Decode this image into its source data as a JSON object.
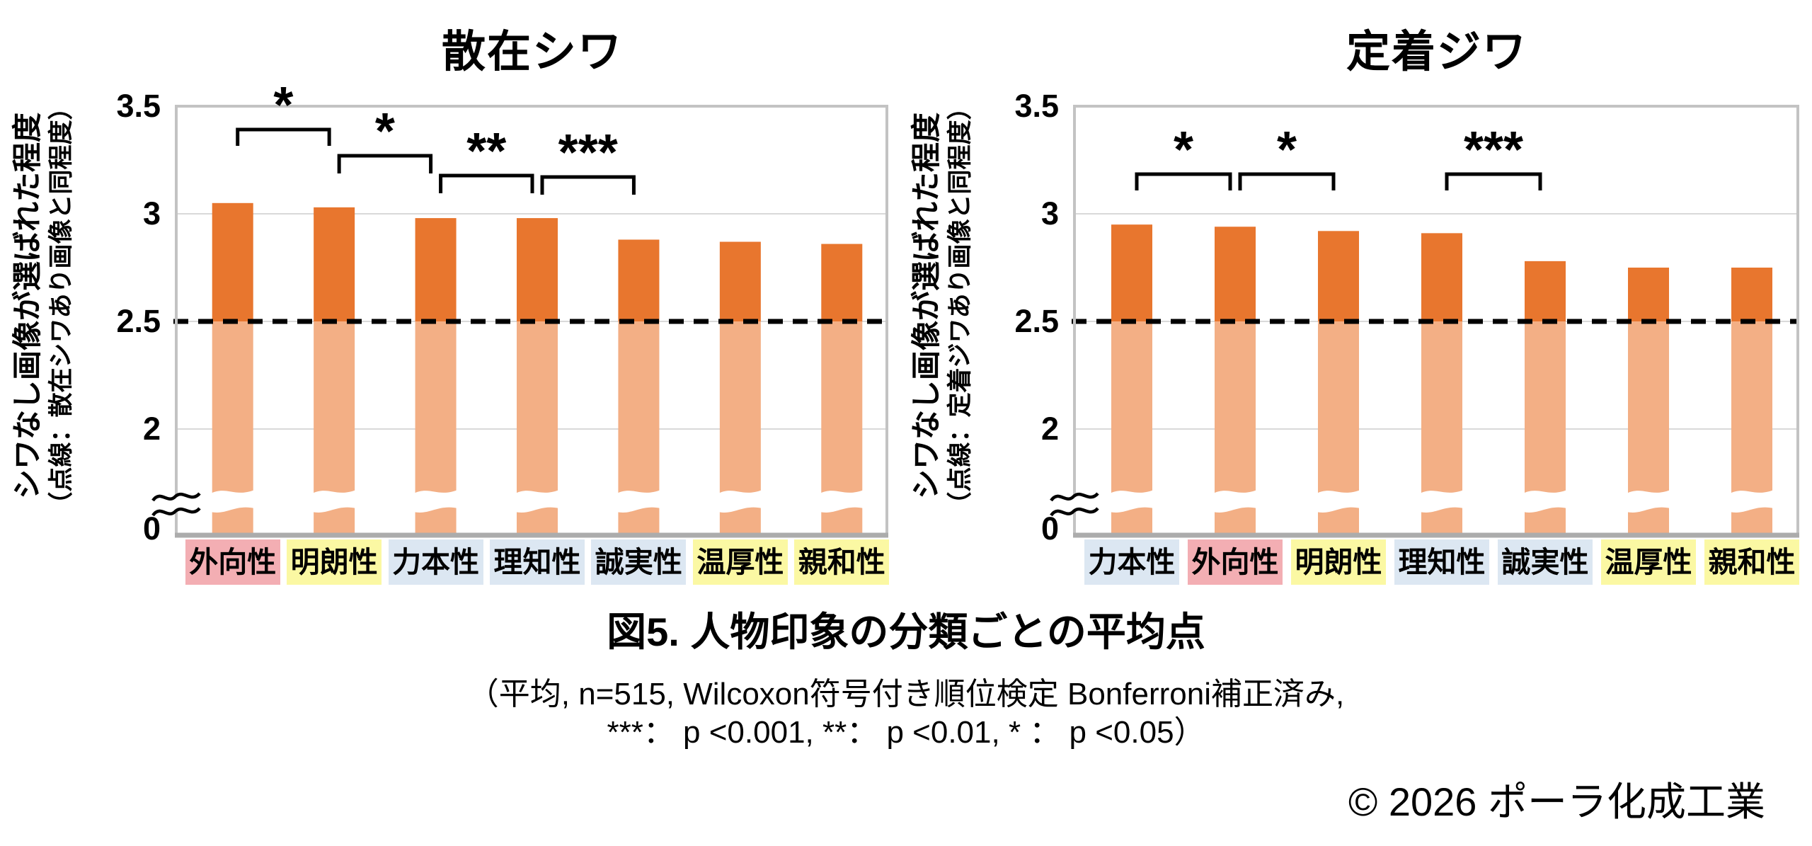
{
  "figure": {
    "caption_title": "図5. 人物印象の分類ごとの平均点",
    "caption_note_line1": "（平均, n=515, Wilcoxon符号付き順位検定 Bonferroni補正済み,",
    "caption_note_line2": "***： p <0.001, **： p <0.01, * ： p <0.05）",
    "copyright": "© 2026 ポーラ化成工業"
  },
  "colors": {
    "bar_dark": "#E8762E",
    "bar_light": "#F3AF85",
    "label_pink": "#F3AEB3",
    "label_yellow": "#FBF8A3",
    "label_blue": "#DCE7F2",
    "gridline": "#D9D9D9",
    "plot_border": "#C3C3C3",
    "axis_bottom": "#ACACAC",
    "baseline_dash": "#000000"
  },
  "chart_data": [
    {
      "type": "bar",
      "title": "散在シワ",
      "ylabel": "シワなし画像が選ばれた程度",
      "ylabel_sub": "（点線：散在シワあり画像と同程度）",
      "xlabel": "",
      "categories": [
        "外向性",
        "明朗性",
        "力本性",
        "理知性",
        "誠実性",
        "温厚性",
        "親和性"
      ],
      "category_colors": [
        "pink",
        "yellow",
        "blue",
        "blue",
        "blue",
        "yellow",
        "yellow"
      ],
      "values": [
        3.05,
        3.03,
        2.98,
        2.98,
        2.88,
        2.87,
        2.86
      ],
      "yticks": [
        3.5,
        3,
        2.5,
        2,
        0
      ],
      "ylim": [
        0,
        3.5
      ],
      "axis_break": "between 0 and 2",
      "grid": true,
      "legend": "none",
      "baseline": 2.5,
      "baseline_meaning": "点線：散在シワあり画像と同程度",
      "significance": [
        {
          "bars": [
            1,
            2
          ],
          "label": "*"
        },
        {
          "bars": [
            2,
            3
          ],
          "label": "*"
        },
        {
          "bars": [
            3,
            4
          ],
          "label": "**"
        },
        {
          "bars": [
            4,
            5
          ],
          "label": "***"
        }
      ]
    },
    {
      "type": "bar",
      "title": "定着ジワ",
      "ylabel": "シワなし画像が選ばれた程度",
      "ylabel_sub": "（点線：定着ジワあり画像と同程度）",
      "xlabel": "",
      "categories": [
        "力本性",
        "外向性",
        "明朗性",
        "理知性",
        "誠実性",
        "温厚性",
        "親和性"
      ],
      "category_colors": [
        "blue",
        "pink",
        "yellow",
        "blue",
        "blue",
        "yellow",
        "yellow"
      ],
      "values": [
        2.95,
        2.94,
        2.92,
        2.91,
        2.78,
        2.75,
        2.75
      ],
      "yticks": [
        3.5,
        3,
        2.5,
        2,
        0
      ],
      "ylim": [
        0,
        3.5
      ],
      "axis_break": "between 0 and 2",
      "grid": true,
      "legend": "none",
      "baseline": 2.5,
      "baseline_meaning": "点線：定着ジワあり画像と同程度",
      "significance": [
        {
          "bars": [
            1,
            2
          ],
          "label": "*"
        },
        {
          "bars": [
            2,
            3
          ],
          "label": "*"
        },
        {
          "bars": [
            4,
            5
          ],
          "label": "***"
        }
      ]
    }
  ]
}
